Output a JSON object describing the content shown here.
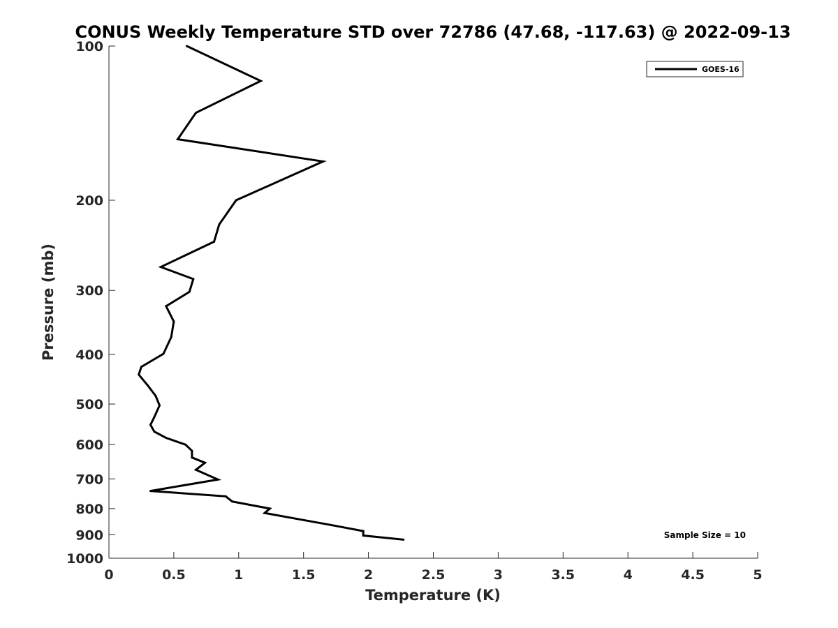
{
  "chart_data": {
    "type": "line",
    "title": "CONUS Weekly Temperature STD over 72786 (47.68, -117.63) @ 2022-09-13",
    "xlabel": "Temperature (K)",
    "ylabel": "Pressure (mb)",
    "xlim": [
      0,
      5
    ],
    "ylim": [
      100,
      1000
    ],
    "y_scale": "log",
    "y_reversed": true,
    "grid": false,
    "legend_position": "top-right",
    "annotation": "Sample Size = 10",
    "x_ticks": [
      "0",
      "0.5",
      "1",
      "1.5",
      "2",
      "2.5",
      "3",
      "3.5",
      "4",
      "4.5",
      "5"
    ],
    "y_ticks": [
      "100",
      "200",
      "300",
      "400",
      "500",
      "600",
      "700",
      "800",
      "900",
      "1000"
    ],
    "series": [
      {
        "name": "GOES-16",
        "color": "#000000",
        "points": [
          {
            "x": 0.6,
            "p": 100
          },
          {
            "x": 1.17,
            "p": 117
          },
          {
            "x": 0.67,
            "p": 135
          },
          {
            "x": 0.53,
            "p": 152
          },
          {
            "x": 1.65,
            "p": 168
          },
          {
            "x": 0.98,
            "p": 200
          },
          {
            "x": 0.85,
            "p": 223
          },
          {
            "x": 0.81,
            "p": 241
          },
          {
            "x": 0.4,
            "p": 270
          },
          {
            "x": 0.65,
            "p": 285
          },
          {
            "x": 0.62,
            "p": 302
          },
          {
            "x": 0.44,
            "p": 322
          },
          {
            "x": 0.5,
            "p": 345
          },
          {
            "x": 0.48,
            "p": 370
          },
          {
            "x": 0.42,
            "p": 399
          },
          {
            "x": 0.25,
            "p": 423
          },
          {
            "x": 0.23,
            "p": 438
          },
          {
            "x": 0.3,
            "p": 460
          },
          {
            "x": 0.36,
            "p": 482
          },
          {
            "x": 0.39,
            "p": 503
          },
          {
            "x": 0.35,
            "p": 530
          },
          {
            "x": 0.32,
            "p": 549
          },
          {
            "x": 0.35,
            "p": 566
          },
          {
            "x": 0.44,
            "p": 582
          },
          {
            "x": 0.59,
            "p": 600
          },
          {
            "x": 0.64,
            "p": 617
          },
          {
            "x": 0.64,
            "p": 636
          },
          {
            "x": 0.74,
            "p": 651
          },
          {
            "x": 0.67,
            "p": 672
          },
          {
            "x": 0.84,
            "p": 702
          },
          {
            "x": 0.32,
            "p": 739
          },
          {
            "x": 0.9,
            "p": 757
          },
          {
            "x": 0.95,
            "p": 775
          },
          {
            "x": 1.24,
            "p": 800
          },
          {
            "x": 1.2,
            "p": 816
          },
          {
            "x": 1.44,
            "p": 837
          },
          {
            "x": 1.72,
            "p": 862
          },
          {
            "x": 1.96,
            "p": 885
          },
          {
            "x": 1.96,
            "p": 903
          },
          {
            "x": 2.27,
            "p": 920
          }
        ]
      }
    ]
  }
}
